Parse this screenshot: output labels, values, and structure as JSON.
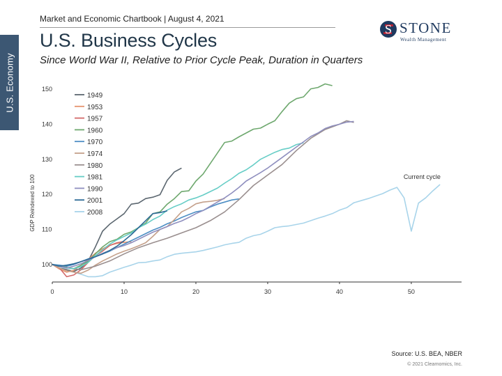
{
  "side_tab": "U.S. Economy",
  "header": "Market and Economic Chartbook | August 4, 2021",
  "title": "U.S. Business Cycles",
  "subtitle": "Since World War II, Relative to Prior Cycle Peak, Duration in Quarters",
  "logo": {
    "word": "STONE",
    "sub": "Wealth Management",
    "mark": "S",
    "colors": {
      "navy": "#1f3a5f",
      "red": "#b22234"
    }
  },
  "source": "Source: U.S. BEA, NBER",
  "copyright": "© 2021 Clearnomics, Inc.",
  "chart_data": {
    "type": "line",
    "title": "U.S. Business Cycles",
    "xlabel": "",
    "ylabel": "GDP Reindexed to 100",
    "xlim": [
      0,
      57
    ],
    "ylim": [
      95,
      152
    ],
    "xticks": [
      0,
      10,
      20,
      30,
      40,
      50
    ],
    "yticks": [
      100,
      110,
      120,
      130,
      140,
      150
    ],
    "legend_position": "top-left",
    "annotation": {
      "text": "Current cycle",
      "x": 51.5,
      "y": 122.8
    },
    "series": [
      {
        "name": "1949",
        "color": "#5c6770",
        "x": [
          0,
          1,
          2,
          3,
          4,
          5,
          6,
          7,
          8,
          9,
          10,
          11,
          12,
          13,
          14,
          15,
          16,
          17,
          18
        ],
        "y": [
          100,
          99,
          98.5,
          98,
          99,
          101,
          105,
          109.5,
          111.5,
          113,
          114.5,
          117.2,
          117.5,
          118.8,
          119.2,
          119.9,
          124,
          126.4,
          127.5
        ]
      },
      {
        "name": "1953",
        "color": "#e6936e",
        "x": [
          0,
          1,
          2,
          3,
          4,
          5,
          6,
          7,
          8,
          9,
          10,
          11
        ],
        "y": [
          100,
          98.7,
          97.8,
          98.3,
          99.8,
          101.5,
          103.2,
          104.5,
          105.5,
          106,
          106.3,
          106.5
        ]
      },
      {
        "name": "1957",
        "color": "#d36a6a",
        "x": [
          0,
          1,
          2,
          3,
          4,
          5,
          6,
          7,
          8,
          9,
          10
        ],
        "y": [
          100,
          99,
          96.5,
          97,
          98.5,
          100.6,
          102.5,
          103.8,
          105.4,
          106.2,
          106.6
        ]
      },
      {
        "name": "1960",
        "color": "#6ea86e",
        "x": [
          0,
          1,
          2,
          3,
          4,
          5,
          6,
          7,
          8,
          9,
          10,
          11,
          12,
          13,
          14,
          15,
          16,
          17,
          18,
          19,
          20,
          21,
          22,
          23,
          24,
          25,
          26,
          27,
          28,
          29,
          30,
          31,
          32,
          33,
          34,
          35,
          36,
          37,
          38,
          39
        ],
        "y": [
          100,
          99.6,
          99.2,
          98.8,
          99.8,
          101,
          103,
          105,
          106.5,
          107.2,
          108.6,
          109.3,
          110.5,
          111.8,
          114.5,
          115,
          117.2,
          118.8,
          120.8,
          121,
          123.8,
          125.8,
          128.8,
          131.8,
          134.8,
          135.2,
          136.4,
          137.5,
          138.6,
          138.9,
          140,
          141,
          143.6,
          146,
          147.3,
          147.8,
          150.1,
          150.5,
          151.5,
          151
        ]
      },
      {
        "name": "1970",
        "color": "#4d8ec4",
        "x": [
          0,
          1,
          2,
          3,
          4,
          5,
          6,
          7,
          8,
          9,
          10,
          11,
          12,
          13,
          14,
          15,
          16,
          17,
          18,
          19,
          20,
          21,
          22,
          23,
          24,
          25,
          26
        ],
        "y": [
          100,
          99.8,
          99.5,
          100,
          100.8,
          101.6,
          102.3,
          103,
          103.8,
          104.8,
          105.8,
          106.8,
          107.8,
          108.8,
          109.8,
          110.6,
          111.6,
          112.4,
          113.4,
          114.2,
          115,
          115.4,
          116.4,
          117.2,
          117.8,
          118.4,
          118.7
        ]
      },
      {
        "name": "1974",
        "color": "#c4a08a",
        "x": [
          0,
          1,
          2,
          3,
          4,
          5,
          6,
          7,
          8,
          9,
          10,
          11,
          12,
          13,
          14,
          15,
          16,
          17,
          18,
          19,
          20,
          21,
          22,
          23,
          24
        ],
        "y": [
          100,
          99,
          98.2,
          97.8,
          97.5,
          98.4,
          99.8,
          101,
          102,
          103,
          103.8,
          104.5,
          105.3,
          106.2,
          108,
          110,
          110.8,
          112.8,
          115,
          116,
          117.3,
          117.8,
          118,
          118.3,
          118.8
        ]
      },
      {
        "name": "1980",
        "color": "#9a8f8f",
        "x": [
          0,
          2,
          4,
          6,
          8,
          10,
          12,
          14,
          16,
          18,
          20,
          22,
          24,
          26,
          28,
          30,
          32,
          34,
          36,
          38,
          40,
          41,
          42
        ],
        "y": [
          100,
          99,
          98.5,
          99.5,
          101,
          103,
          104.8,
          106.2,
          107.5,
          109,
          110.5,
          112.5,
          115,
          118.5,
          122.5,
          125.5,
          128.5,
          132.5,
          136,
          138.5,
          140,
          141,
          140.5
        ]
      },
      {
        "name": "1981",
        "color": "#66cdc6",
        "x": [
          0,
          1,
          2,
          3,
          4,
          5,
          6,
          7,
          8,
          9,
          10,
          11,
          12,
          13,
          14,
          15,
          16,
          17,
          18,
          19,
          20,
          21,
          22,
          23,
          24,
          25,
          26,
          27,
          28,
          29,
          30,
          31,
          32,
          33,
          34,
          35
        ],
        "y": [
          100,
          99.5,
          99,
          98.8,
          99.4,
          100.6,
          102.5,
          104.2,
          105.8,
          107,
          108,
          109,
          110.5,
          111.5,
          112.8,
          113.8,
          115.5,
          116.5,
          117.3,
          118.4,
          119,
          119.8,
          120.8,
          121.8,
          123.2,
          124.5,
          126,
          127,
          128.4,
          130,
          131,
          132,
          132.8,
          133.2,
          134.2,
          134.7
        ]
      },
      {
        "name": "1990",
        "color": "#8f8fbf",
        "x": [
          0,
          1,
          2,
          3,
          4,
          5,
          6,
          7,
          8,
          9,
          10,
          11,
          12,
          13,
          14,
          15,
          16,
          17,
          18,
          19,
          20,
          21,
          22,
          23,
          24,
          25,
          26,
          27,
          28,
          29,
          30,
          31,
          32,
          33,
          34,
          35,
          36,
          37,
          38,
          39,
          40,
          41,
          42
        ],
        "y": [
          100,
          99.5,
          99,
          99.5,
          100.2,
          101.2,
          102.2,
          103.2,
          104,
          104.8,
          105.4,
          106.2,
          107.2,
          108.2,
          109.2,
          110,
          110.8,
          111.7,
          112.4,
          113.4,
          114.5,
          115.4,
          116.6,
          117.8,
          119,
          120.4,
          122,
          123.8,
          125,
          126.2,
          127.5,
          129,
          130.5,
          132,
          133.5,
          135,
          136.5,
          137.5,
          138.8,
          139.5,
          140,
          140.6,
          140.8
        ]
      },
      {
        "name": "2001",
        "color": "#2d6a96",
        "x": [
          0,
          1,
          2,
          3,
          4,
          5,
          6,
          7,
          8,
          9,
          10,
          11,
          12,
          13,
          14,
          15,
          16
        ],
        "y": [
          100,
          99.5,
          99.8,
          100.2,
          100.8,
          101.5,
          102.2,
          103,
          104,
          105.2,
          106.8,
          108.5,
          110.5,
          112.5,
          114.5,
          114.8,
          115.3
        ]
      },
      {
        "name": "2008",
        "color": "#a8d4ea",
        "x": [
          0,
          1,
          2,
          3,
          4,
          5,
          6,
          7,
          8,
          9,
          10,
          11,
          12,
          13,
          14,
          15,
          16,
          17,
          18,
          19,
          20,
          21,
          22,
          23,
          24,
          25,
          26,
          27,
          28,
          29,
          30,
          31,
          32,
          33,
          34,
          35,
          36,
          37,
          38,
          39,
          40,
          41,
          42,
          43,
          44,
          45,
          46,
          47,
          48,
          49,
          50,
          51,
          52,
          53,
          54
        ],
        "y": [
          100,
          99.5,
          98.5,
          97.8,
          97.2,
          96.5,
          96.5,
          96.8,
          97.8,
          98.5,
          99.2,
          99.8,
          100.5,
          100.6,
          101,
          101.3,
          102.2,
          102.9,
          103.2,
          103.4,
          103.6,
          104,
          104.5,
          105,
          105.6,
          106,
          106.3,
          107.5,
          108.2,
          108.6,
          109.5,
          110.5,
          110.8,
          111,
          111.4,
          111.8,
          112.5,
          113.2,
          113.8,
          114.5,
          115.5,
          116.2,
          117.6,
          118.2,
          118.8,
          119.5,
          120.2,
          121.2,
          122,
          119,
          109.5,
          117.5,
          119,
          121,
          122.8
        ]
      }
    ]
  }
}
